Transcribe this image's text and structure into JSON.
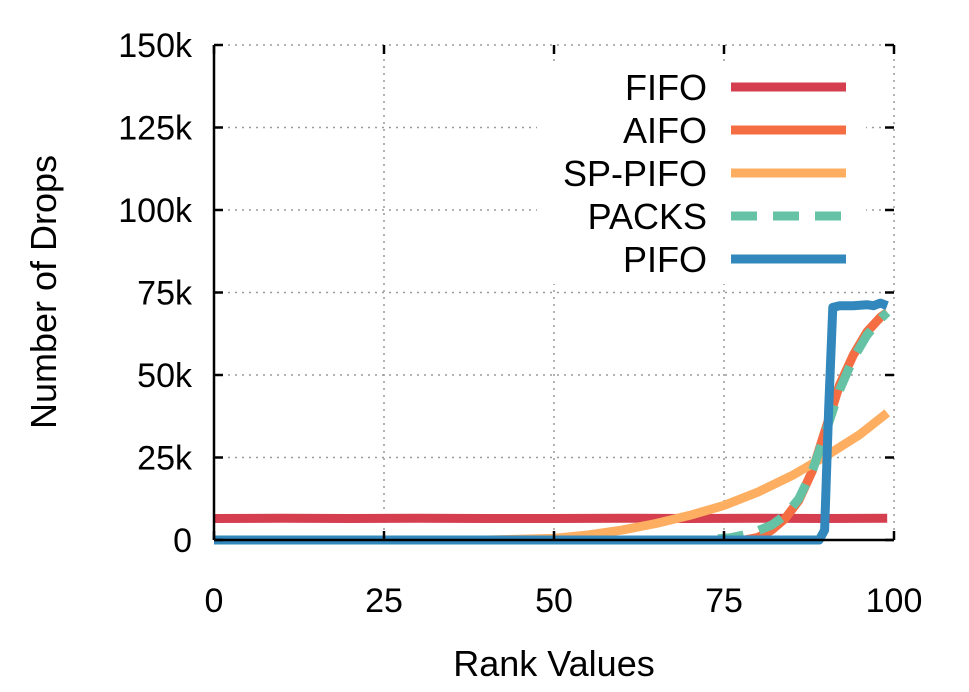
{
  "chart_data": {
    "type": "line",
    "xlabel": "Rank Values",
    "ylabel": "Number of Drops",
    "xlim": [
      0,
      100
    ],
    "ylim": [
      0,
      150000
    ],
    "xticks": [
      0,
      25,
      50,
      75,
      100
    ],
    "xtick_labels": [
      "0",
      "25",
      "50",
      "75",
      "100"
    ],
    "yticks": [
      0,
      25000,
      50000,
      75000,
      100000,
      125000,
      150000
    ],
    "ytick_labels": [
      "0",
      "25k",
      "50k",
      "75k",
      "100k",
      "125k",
      "150k"
    ],
    "grid": true,
    "legend_position": "top-right",
    "series": [
      {
        "name": "FIFO",
        "color": "#d53e4f",
        "dash": "solid",
        "x": [
          0,
          10,
          20,
          30,
          40,
          50,
          60,
          70,
          80,
          90,
          99
        ],
        "y": [
          6500,
          6600,
          6500,
          6600,
          6500,
          6500,
          6600,
          6500,
          6600,
          6500,
          6600
        ]
      },
      {
        "name": "AIFO",
        "color": "#f46d43",
        "dash": "solid",
        "x": [
          0,
          78,
          80,
          82,
          84,
          86,
          88,
          90,
          92,
          94,
          96,
          98,
          99
        ],
        "y": [
          0,
          0,
          800,
          3000,
          6500,
          12000,
          21000,
          34000,
          47000,
          56000,
          63000,
          67500,
          69000
        ]
      },
      {
        "name": "SP-PIFO",
        "color": "#fdae61",
        "dash": "solid",
        "x": [
          0,
          40,
          50,
          55,
          60,
          65,
          70,
          75,
          80,
          85,
          90,
          95,
          99
        ],
        "y": [
          0,
          0,
          500,
          1500,
          3000,
          5000,
          7500,
          10500,
          14500,
          19500,
          25500,
          32000,
          38500
        ]
      },
      {
        "name": "PACKS",
        "color": "#66c2a5",
        "dash": "dashed",
        "x": [
          0,
          72,
          76,
          79,
          82,
          84,
          86,
          88,
          90,
          92,
          94,
          96,
          98,
          99
        ],
        "y": [
          0,
          0,
          700,
          2000,
          4500,
          7500,
          12500,
          21000,
          33000,
          45500,
          55000,
          62000,
          67000,
          69000
        ]
      },
      {
        "name": "PIFO",
        "color": "#3288bd",
        "dash": "solid",
        "x": [
          0,
          89,
          89.8,
          90.4,
          91,
          92,
          94,
          96,
          97,
          98,
          99
        ],
        "y": [
          0,
          0,
          3000,
          40000,
          70500,
          71000,
          71000,
          71300,
          71000,
          71800,
          71000
        ]
      }
    ]
  }
}
